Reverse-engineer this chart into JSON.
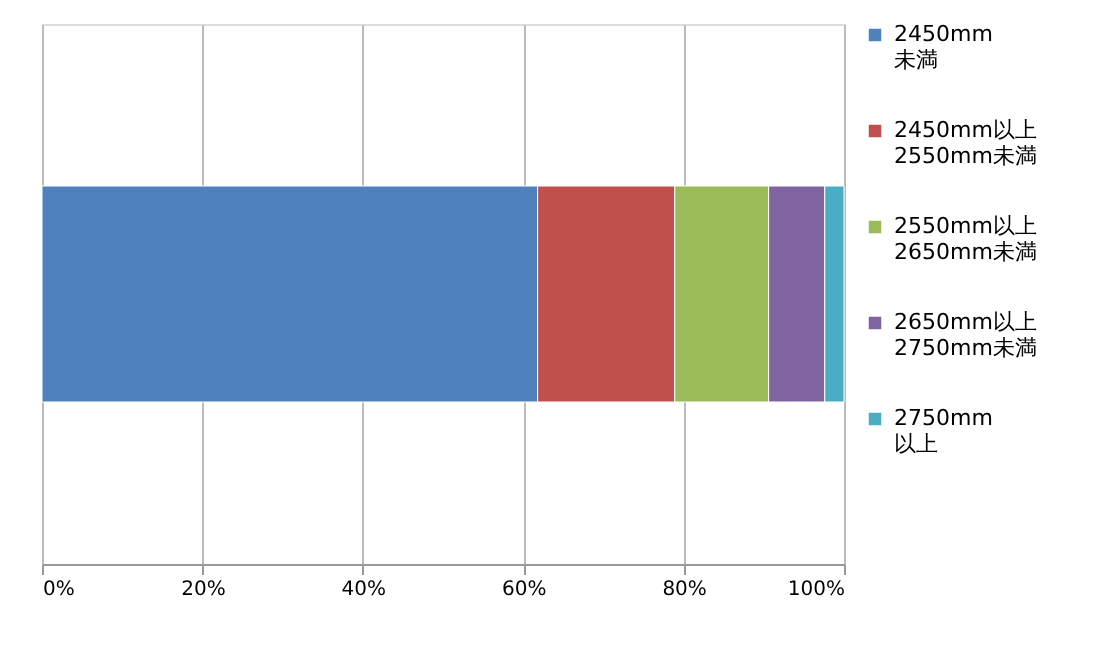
{
  "chart_data": {
    "type": "bar",
    "orientation": "horizontal",
    "stacked": true,
    "categories": [
      null
    ],
    "series": [
      {
        "name": "2450mm\n未満",
        "color": "#4f81bd",
        "values": [
          61.8
        ]
      },
      {
        "name": "2450mm以上\n2550mm未満",
        "color": "#c0504d",
        "values": [
          17.1
        ]
      },
      {
        "name": "2550mm以上\n2650mm未満",
        "color": "#9bbb59",
        "values": [
          11.7
        ]
      },
      {
        "name": "2650mm以上\n2750mm未満",
        "color": "#8064a2",
        "values": [
          7.0
        ]
      },
      {
        "name": "2750mm\n以上",
        "color": "#4bacc6",
        "values": [
          2.4
        ]
      }
    ],
    "xlim": [
      0,
      100
    ],
    "xticks": [
      {
        "value": 0,
        "label": "0%"
      },
      {
        "value": 20,
        "label": "20%"
      },
      {
        "value": 40,
        "label": "40%"
      },
      {
        "value": 60,
        "label": "60%"
      },
      {
        "value": 80,
        "label": "80%"
      },
      {
        "value": 100,
        "label": "100%"
      }
    ],
    "grid": "x",
    "legend": "right",
    "tick_labels": "x"
  }
}
